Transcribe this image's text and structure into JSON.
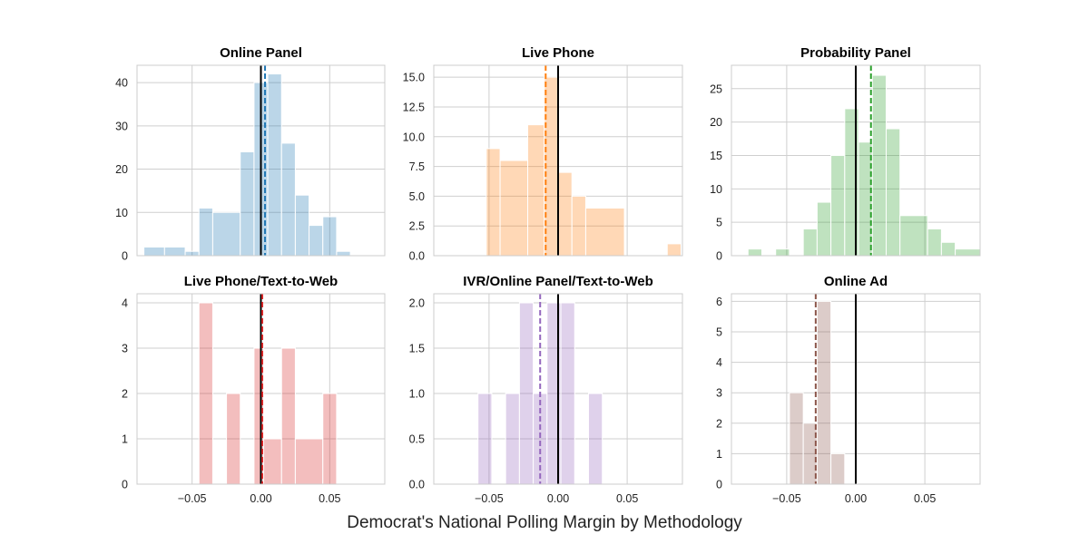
{
  "figure": {
    "supxlabel": "Democrat's National Polling Margin by Methodology"
  },
  "chart_data": [
    {
      "type": "bar",
      "title": "Online Panel",
      "color": "#1f77b4",
      "bar_alpha": 0.3,
      "xlim": [
        -0.09,
        0.09
      ],
      "ylim": [
        0,
        44
      ],
      "xticks": [],
      "yticks": [
        0,
        10,
        20,
        30,
        40
      ],
      "ytick_labels": [
        "0",
        "10",
        "20",
        "30",
        "40"
      ],
      "bins": [
        {
          "x0": -0.085,
          "x1": -0.07,
          "value": 2
        },
        {
          "x0": -0.07,
          "x1": -0.055,
          "value": 2
        },
        {
          "x0": -0.055,
          "x1": -0.045,
          "value": 1
        },
        {
          "x0": -0.045,
          "x1": -0.035,
          "value": 11
        },
        {
          "x0": -0.035,
          "x1": -0.015,
          "value": 10
        },
        {
          "x0": -0.015,
          "x1": -0.005,
          "value": 24
        },
        {
          "x0": -0.005,
          "x1": 0.005,
          "value": 40
        },
        {
          "x0": 0.005,
          "x1": 0.015,
          "value": 42
        },
        {
          "x0": 0.015,
          "x1": 0.025,
          "value": 26
        },
        {
          "x0": 0.025,
          "x1": 0.035,
          "value": 14
        },
        {
          "x0": 0.035,
          "x1": 0.045,
          "value": 7
        },
        {
          "x0": 0.045,
          "x1": 0.055,
          "value": 9
        },
        {
          "x0": 0.055,
          "x1": 0.065,
          "value": 1
        }
      ],
      "zero_line": 0,
      "mean_line": 0.003
    },
    {
      "type": "bar",
      "title": "Live Phone",
      "color": "#ff7f0e",
      "bar_alpha": 0.3,
      "xlim": [
        -0.09,
        0.09
      ],
      "ylim": [
        0,
        16
      ],
      "xticks": [],
      "yticks": [
        0,
        2.5,
        5,
        7.5,
        10,
        12.5,
        15
      ],
      "ytick_labels": [
        "0.0",
        "2.5",
        "5.0",
        "7.5",
        "10.0",
        "12.5",
        "15.0"
      ],
      "bins": [
        {
          "x0": -0.052,
          "x1": -0.042,
          "value": 9
        },
        {
          "x0": -0.042,
          "x1": -0.022,
          "value": 8
        },
        {
          "x0": -0.022,
          "x1": -0.01,
          "value": 11
        },
        {
          "x0": -0.01,
          "x1": 0.0,
          "value": 15
        },
        {
          "x0": 0.0,
          "x1": 0.01,
          "value": 7
        },
        {
          "x0": 0.01,
          "x1": 0.02,
          "value": 5
        },
        {
          "x0": 0.02,
          "x1": 0.048,
          "value": 4
        },
        {
          "x0": 0.079,
          "x1": 0.089,
          "value": 1
        }
      ],
      "zero_line": 0,
      "mean_line": -0.009
    },
    {
      "type": "bar",
      "title": "Probability Panel",
      "color": "#2ca02c",
      "bar_alpha": 0.3,
      "xlim": [
        -0.09,
        0.09
      ],
      "ylim": [
        0,
        28.5
      ],
      "xticks": [],
      "yticks": [
        0,
        5,
        10,
        15,
        20,
        25
      ],
      "ytick_labels": [
        "0",
        "5",
        "10",
        "15",
        "20",
        "25"
      ],
      "bins": [
        {
          "x0": -0.078,
          "x1": -0.068,
          "value": 1
        },
        {
          "x0": -0.058,
          "x1": -0.048,
          "value": 1
        },
        {
          "x0": -0.038,
          "x1": -0.028,
          "value": 4
        },
        {
          "x0": -0.028,
          "x1": -0.018,
          "value": 8
        },
        {
          "x0": -0.018,
          "x1": -0.008,
          "value": 15
        },
        {
          "x0": -0.008,
          "x1": 0.002,
          "value": 22
        },
        {
          "x0": 0.002,
          "x1": 0.012,
          "value": 17
        },
        {
          "x0": 0.012,
          "x1": 0.022,
          "value": 27
        },
        {
          "x0": 0.022,
          "x1": 0.032,
          "value": 19
        },
        {
          "x0": 0.032,
          "x1": 0.052,
          "value": 6
        },
        {
          "x0": 0.052,
          "x1": 0.062,
          "value": 4
        },
        {
          "x0": 0.062,
          "x1": 0.072,
          "value": 2
        },
        {
          "x0": 0.072,
          "x1": 0.09,
          "value": 1
        }
      ],
      "zero_line": 0,
      "mean_line": 0.011
    },
    {
      "type": "bar",
      "title": "Live Phone/Text-to-Web",
      "color": "#d62728",
      "bar_alpha": 0.3,
      "xlim": [
        -0.09,
        0.09
      ],
      "ylim": [
        0,
        4.2
      ],
      "xticks": [
        -0.05,
        0.0,
        0.05
      ],
      "xtick_labels": [
        "−0.05",
        "0.00",
        "0.05"
      ],
      "yticks": [
        0,
        1,
        2,
        3,
        4
      ],
      "ytick_labels": [
        "0",
        "1",
        "2",
        "3",
        "4"
      ],
      "bins": [
        {
          "x0": -0.045,
          "x1": -0.035,
          "value": 4
        },
        {
          "x0": -0.025,
          "x1": -0.015,
          "value": 2
        },
        {
          "x0": -0.005,
          "x1": 0.002,
          "value": 3
        },
        {
          "x0": 0.002,
          "x1": 0.015,
          "value": 1
        },
        {
          "x0": 0.015,
          "x1": 0.025,
          "value": 3
        },
        {
          "x0": 0.025,
          "x1": 0.045,
          "value": 1
        },
        {
          "x0": 0.045,
          "x1": 0.055,
          "value": 2
        }
      ],
      "zero_line": 0,
      "mean_line": 0.001
    },
    {
      "type": "bar",
      "title": "IVR/Online Panel/Text-to-Web",
      "color": "#9467bd",
      "bar_alpha": 0.3,
      "xlim": [
        -0.09,
        0.09
      ],
      "ylim": [
        0,
        2.1
      ],
      "xticks": [
        -0.05,
        0.0,
        0.05
      ],
      "xtick_labels": [
        "−0.05",
        "0.00",
        "0.05"
      ],
      "yticks": [
        0,
        0.5,
        1,
        1.5,
        2
      ],
      "ytick_labels": [
        "0.0",
        "0.5",
        "1.0",
        "1.5",
        "2.0"
      ],
      "bins": [
        {
          "x0": -0.058,
          "x1": -0.048,
          "value": 1
        },
        {
          "x0": -0.038,
          "x1": -0.028,
          "value": 1
        },
        {
          "x0": -0.028,
          "x1": -0.018,
          "value": 2
        },
        {
          "x0": -0.018,
          "x1": -0.008,
          "value": 1
        },
        {
          "x0": -0.008,
          "x1": 0.002,
          "value": 2
        },
        {
          "x0": 0.002,
          "x1": 0.012,
          "value": 2
        },
        {
          "x0": 0.022,
          "x1": 0.032,
          "value": 1
        }
      ],
      "zero_line": 0,
      "mean_line": -0.013
    },
    {
      "type": "bar",
      "title": "Online Ad",
      "color": "#8c564b",
      "bar_alpha": 0.3,
      "xlim": [
        -0.09,
        0.09
      ],
      "ylim": [
        0,
        6.25
      ],
      "xticks": [
        -0.05,
        0.0,
        0.05
      ],
      "xtick_labels": [
        "−0.05",
        "0.00",
        "0.05"
      ],
      "yticks": [
        0,
        1,
        2,
        3,
        4,
        5,
        6
      ],
      "ytick_labels": [
        "0",
        "1",
        "2",
        "3",
        "4",
        "5",
        "6"
      ],
      "bins": [
        {
          "x0": -0.048,
          "x1": -0.038,
          "value": 3
        },
        {
          "x0": -0.038,
          "x1": -0.028,
          "value": 2
        },
        {
          "x0": -0.028,
          "x1": -0.018,
          "value": 6
        },
        {
          "x0": -0.018,
          "x1": -0.008,
          "value": 1
        }
      ],
      "zero_line": 0,
      "mean_line": -0.029
    }
  ]
}
